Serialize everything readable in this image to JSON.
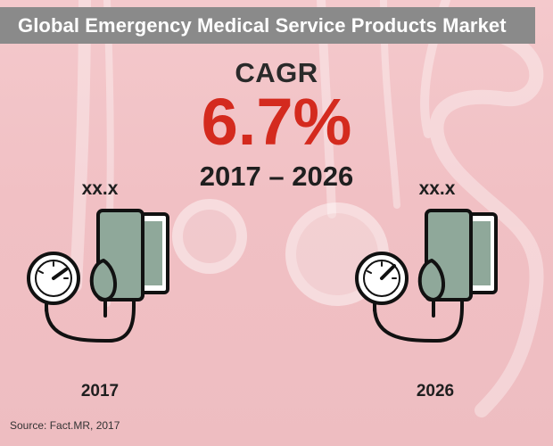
{
  "title": "Global Emergency Medical Service Products Market",
  "cagr_label": "CAGR",
  "cagr_value": "6.7%",
  "period": "2017 – 2026",
  "source": "Source: Fact.MR, 2017",
  "colors": {
    "accent": "#d42a1e",
    "title_bar": "#8a8a8a",
    "icon_fill": "#8fa89a"
  },
  "chart_data": {
    "type": "table",
    "title": "Global Emergency Medical Service Products Market",
    "categories": [
      "2017",
      "2026"
    ],
    "values": [
      "xx.x",
      "xx.x"
    ],
    "cagr": "6.7%",
    "period": "2017 – 2026",
    "icons": [
      "blood-pressure-monitor-icon",
      "blood-pressure-monitor-icon"
    ]
  }
}
